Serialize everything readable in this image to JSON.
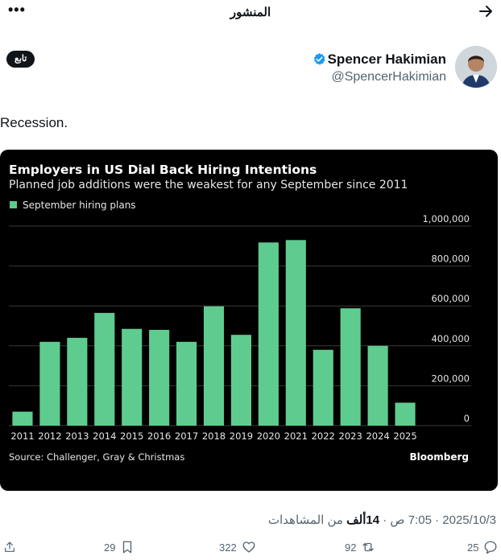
{
  "header": {
    "title": "المنشور"
  },
  "author": {
    "name": "Spencer Hakimian",
    "handle": "@SpencerHakimian",
    "verified": true,
    "follow_label": "تابع"
  },
  "tweet": {
    "text": "Recession."
  },
  "meta": {
    "date": "2025/10/3",
    "time": "7:05 ص",
    "views_count": "14ألف",
    "views_label": "من المشاهدات"
  },
  "actions": {
    "replies": "25",
    "reposts": "92",
    "likes": "322",
    "bookmarks": "29"
  },
  "chart_data": {
    "type": "bar",
    "title": "Employers in US Dial Back Hiring Intentions",
    "subtitle": "Planned job additions were the weakest for any September since 2011",
    "legend": "September hiring plans",
    "legend_position": "top-left",
    "source": "Source: Challenger, Gray & Christmas",
    "brand": "Bloomberg",
    "bar_color": "#5fcc8f",
    "background": "#000000",
    "grid": true,
    "categories": [
      "2011",
      "2012",
      "2013",
      "2014",
      "2015",
      "2016",
      "2017",
      "2018",
      "2019",
      "2020",
      "2021",
      "2022",
      "2023",
      "2024",
      "2025"
    ],
    "values": [
      70000,
      420000,
      440000,
      565000,
      485000,
      480000,
      420000,
      598000,
      455000,
      918000,
      930000,
      380000,
      588000,
      400000,
      115000
    ],
    "ylim": [
      0,
      1000000
    ],
    "yticks": [
      0,
      200000,
      400000,
      600000,
      800000,
      1000000
    ],
    "ytick_labels": [
      "0",
      "200,000",
      "400,000",
      "600,000",
      "800,000",
      "1,000,000"
    ]
  }
}
